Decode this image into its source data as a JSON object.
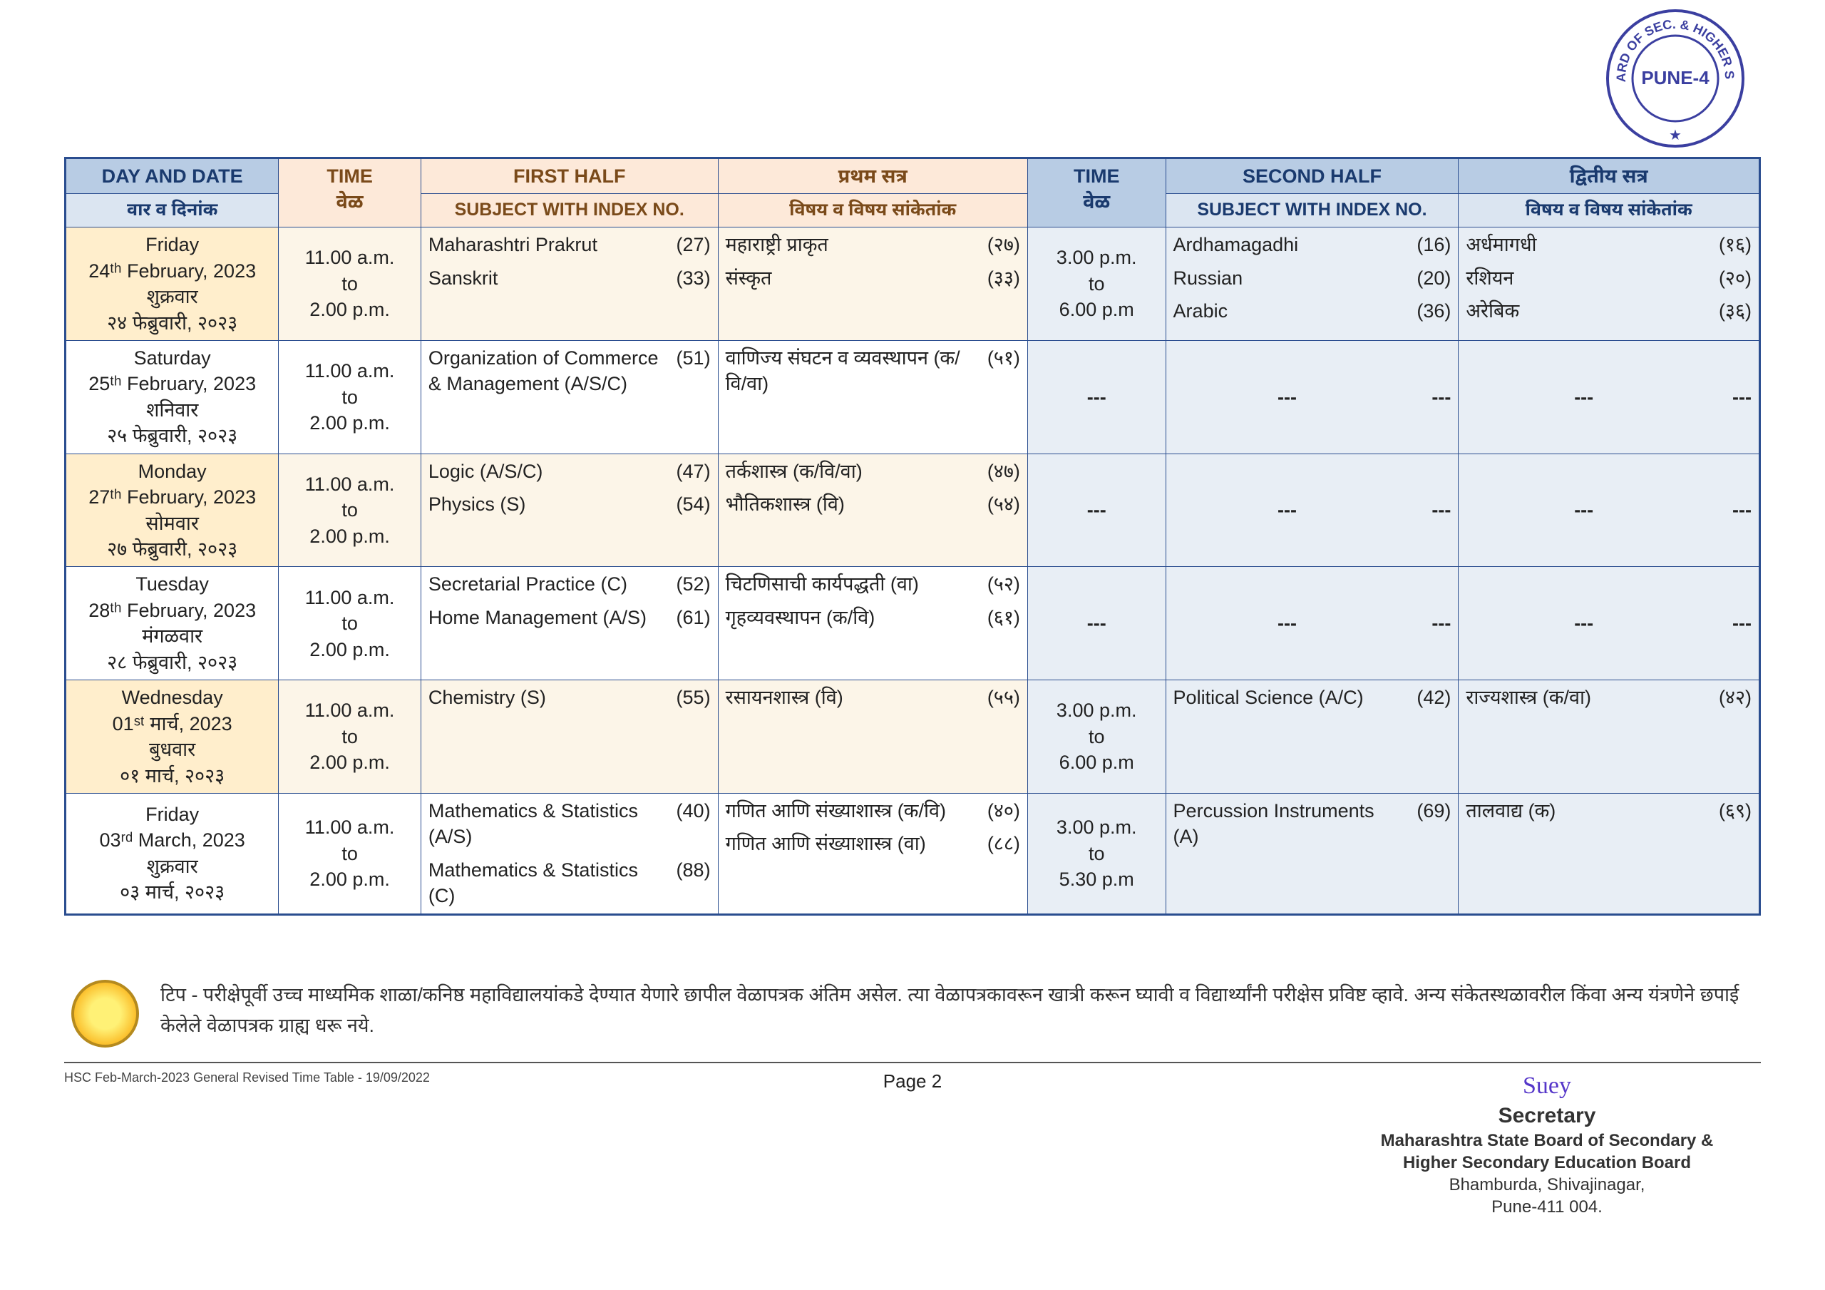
{
  "header": {
    "dayDate_en": "DAY AND DATE",
    "dayDate_mr": "वार व दिनांक",
    "time_en": "TIME",
    "time_mr": "वेळ",
    "firstHalf_en": "FIRST HALF",
    "firstHalf_mr": "प्रथम सत्र",
    "subjIdx_en": "SUBJECT WITH INDEX NO.",
    "subjIdx_mr": "विषय व विषय सांकेतांक",
    "secondHalf_en": "SECOND HALF",
    "secondHalf_mr": "द्वितीय सत्र"
  },
  "rows": [
    {
      "date_en1": "Friday",
      "date_en2": "24ᵗʰ February, 2023",
      "date_mr1": "शुक्रवार",
      "date_mr2": "२४ फेब्रुवारी, २०२३",
      "time1": "11.00 a.m.\nto\n2.00 p.m.",
      "first_en": [
        [
          "Maharashtri Prakrut",
          "(27)"
        ],
        [
          "Sanskrit",
          "(33)"
        ]
      ],
      "first_mr": [
        [
          "महाराष्ट्री प्राकृत",
          "(२७)"
        ],
        [
          "संस्कृत",
          "(३३)"
        ]
      ],
      "time2": "3.00 p.m.\nto\n6.00 p.m",
      "second_en": [
        [
          "Ardhamagadhi",
          "(16)"
        ],
        [
          "Russian",
          "(20)"
        ],
        [
          "Arabic",
          "(36)"
        ]
      ],
      "second_mr": [
        [
          "अर्धमागधी",
          "(१६)"
        ],
        [
          "रशियन",
          "(२०)"
        ],
        [
          "अरेबिक",
          "(३६)"
        ]
      ]
    },
    {
      "date_en1": "Saturday",
      "date_en2": "25ᵗʰ February, 2023",
      "date_mr1": "शनिवार",
      "date_mr2": "२५ फेब्रुवारी, २०२३",
      "time1": "11.00 a.m.\nto\n2.00 p.m.",
      "first_en": [
        [
          "Organization of Commerce & Management (A/S/C)",
          "(51)"
        ]
      ],
      "first_mr": [
        [
          "वाणिज्य संघटन व व्यवस्थापन (क/वि/वा)",
          "(५१)"
        ]
      ],
      "time2": "---",
      "second_en": [
        [
          "---",
          "---"
        ]
      ],
      "second_mr": [
        [
          "---",
          "---"
        ]
      ]
    },
    {
      "date_en1": "Monday",
      "date_en2": "27ᵗʰ February, 2023",
      "date_mr1": "सोमवार",
      "date_mr2": "२७ फेब्रुवारी, २०२३",
      "time1": "11.00 a.m.\nto\n2.00 p.m.",
      "first_en": [
        [
          "Logic  (A/S/C)",
          "(47)"
        ],
        [
          "Physics (S)",
          "(54)"
        ]
      ],
      "first_mr": [
        [
          "तर्कशास्त्र (क/वि/वा)",
          "(४७)"
        ],
        [
          "भौतिकशास्त्र (वि)",
          "(५४)"
        ]
      ],
      "time2": "---",
      "second_en": [
        [
          "---",
          "---"
        ]
      ],
      "second_mr": [
        [
          "---",
          "---"
        ]
      ]
    },
    {
      "date_en1": "Tuesday",
      "date_en2": "28ᵗʰ February, 2023",
      "date_mr1": "मंगळवार",
      "date_mr2": "२८ फेब्रुवारी, २०२३",
      "time1": "11.00 a.m.\nto\n2.00 p.m.",
      "first_en": [
        [
          "Secretarial Practice (C)",
          "(52)"
        ],
        [
          "Home Management (A/S)",
          "(61)"
        ]
      ],
      "first_mr": [
        [
          "चिटणिसाची कार्यपद्धती (वा)",
          "(५२)"
        ],
        [
          "गृहव्यवस्थापन (क/वि)",
          "(६१)"
        ]
      ],
      "time2": "---",
      "second_en": [
        [
          "---",
          "---"
        ]
      ],
      "second_mr": [
        [
          "---",
          "---"
        ]
      ]
    },
    {
      "date_en1": "Wednesday",
      "date_en2": "01ˢᵗ मार्च, 2023",
      "date_mr1": "बुधवार",
      "date_mr2": "०१ मार्च, २०२३",
      "time1": "11.00 a.m.\nto\n2.00 p.m.",
      "first_en": [
        [
          "Chemistry (S)",
          "(55)"
        ]
      ],
      "first_mr": [
        [
          "रसायनशास्त्र (वि)",
          "(५५)"
        ]
      ],
      "time2": "3.00 p.m.\nto\n6.00 p.m",
      "second_en": [
        [
          "Political Science (A/C)",
          "(42)"
        ]
      ],
      "second_mr": [
        [
          "राज्यशास्त्र (क/वा)",
          "(४२)"
        ]
      ]
    },
    {
      "date_en1": "Friday",
      "date_en2": "03ʳᵈ March, 2023",
      "date_mr1": "शुक्रवार",
      "date_mr2": "०३ मार्च, २०२३",
      "time1": "11.00 a.m.\nto\n2.00 p.m.",
      "first_en": [
        [
          "Mathematics & Statistics (A/S)",
          "(40)"
        ],
        [
          "Mathematics & Statistics (C)",
          "(88)"
        ]
      ],
      "first_mr": [
        [
          "गणित आणि संख्याशास्त्र (क/वि)",
          "(४०)"
        ],
        [
          "गणित आणि संख्याशास्त्र (वा)",
          "(८८)"
        ]
      ],
      "time2": "3.00 p.m.\nto\n5.30 p.m",
      "second_en": [
        [
          "Percussion Instruments (A)",
          "(69)"
        ]
      ],
      "second_mr": [
        [
          "तालवाद्य (क)",
          "(६९)"
        ]
      ]
    }
  ],
  "footer": {
    "note": "टिप - परीक्षेपूर्वी उच्च माध्यमिक शाळा/कनिष्ठ महाविद्यालयांकडे देण्यात येणारे छापील वेळापत्रक अंतिम असेल. त्या वेळापत्रकावरून खात्री करून घ्यावी व विद्यार्थ्यांनी परीक्षेस प्रविष्ट व्हावे. अन्य संकेतस्थळावरील किंवा अन्य यंत्रणेने छपाई केलेले वेळापत्रक ग्राह्य धरू नये.",
    "docid": "HSC Feb-March-2023 General Revised Time Table  - 19/09/2022",
    "page": "Page 2",
    "sig": "Suey",
    "secretary_title": "Secretary",
    "board1": "Maharashtra State Board of Secondary &",
    "board2": "Higher Secondary Education Board",
    "addr1": "Bhamburda, Shivajinagar,",
    "addr2": "Pune-411 004."
  },
  "stamp": {
    "outer": "M. S. BOARD OF SEC. & HIGHER SEC. EDN.",
    "inner": "PUNE-4"
  },
  "colors": {
    "border": "#2a4d8f",
    "hdr_blue": "#b8cce4",
    "hdr_peach": "#fde9d9",
    "row_date_odd": "#ffeecc",
    "row_first": "#fcf5e8",
    "row_second": "#e8eef5"
  }
}
